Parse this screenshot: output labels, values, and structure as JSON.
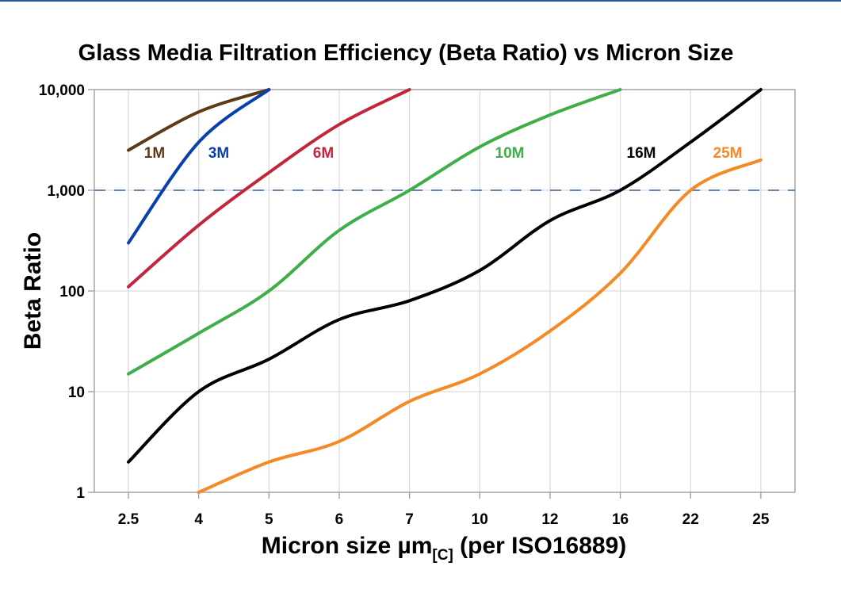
{
  "chart_data": {
    "type": "line",
    "title": "Glass Media Filtration Efficiency (Beta Ratio) vs Micron Size",
    "xlabel": "Micron size µm",
    "xlabel_sub": "[C]",
    "xlabel_suffix": " (per ISO16889)",
    "ylabel": "Beta Ratio",
    "y_scale": "log",
    "ylim": [
      1,
      10000
    ],
    "y_ticks": [
      "1",
      "10",
      "100",
      "1,000",
      "10,000"
    ],
    "categories": [
      "2.5",
      "4",
      "5",
      "6",
      "7",
      "10",
      "12",
      "16",
      "22",
      "25"
    ],
    "grid": true,
    "reference_line": {
      "value": 1000,
      "style": "dashed",
      "color": "#2f5f9f"
    },
    "series": [
      {
        "name": "1M",
        "color": "#5e3a16",
        "values": [
          2500,
          6000,
          10000,
          null,
          null,
          null,
          null,
          null,
          null,
          null
        ]
      },
      {
        "name": "3M",
        "color": "#0a3fae",
        "values": [
          300,
          3000,
          10000,
          null,
          null,
          null,
          null,
          null,
          null,
          null
        ]
      },
      {
        "name": "6M",
        "color": "#c3253d",
        "values": [
          110,
          450,
          1500,
          4500,
          10000,
          null,
          null,
          null,
          null,
          null
        ]
      },
      {
        "name": "10M",
        "color": "#3fae49",
        "values": [
          15,
          38,
          100,
          400,
          1000,
          2700,
          5600,
          10000,
          null,
          null
        ]
      },
      {
        "name": "16M",
        "color": "#000000",
        "values": [
          2,
          10,
          21,
          52,
          80,
          160,
          500,
          1000,
          3000,
          10000
        ]
      },
      {
        "name": "25M",
        "color": "#f58a25",
        "values": [
          null,
          1,
          2,
          3.2,
          8,
          15,
          40,
          150,
          1000,
          2000
        ]
      }
    ]
  }
}
